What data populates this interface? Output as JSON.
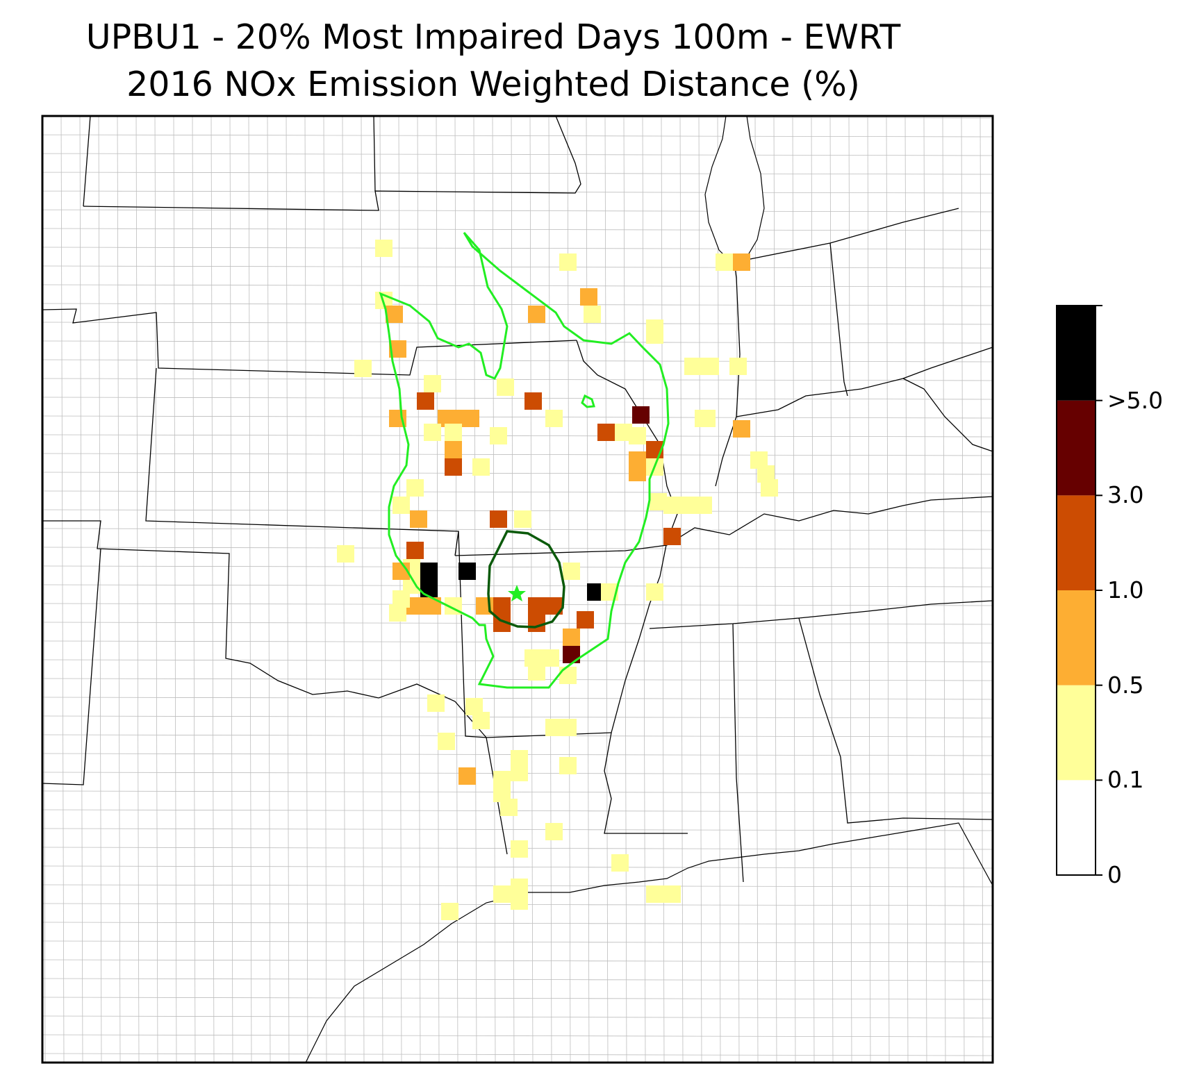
{
  "title": {
    "line1": "UPBU1 - 20% Most Impaired Days 100m - EWRT",
    "line2": "2016 NOx Emission Weighted Distance (%)"
  },
  "colorbar": {
    "labels": [
      "0",
      "0.1",
      "0.5",
      "1.0",
      "3.0",
      ">5.0"
    ],
    "bins": [
      {
        "min": 0,
        "max": 0.1,
        "color": "#ffffff"
      },
      {
        "min": 0.1,
        "max": 0.5,
        "color": "#ffff99"
      },
      {
        "min": 0.5,
        "max": 1.0,
        "color": "#fdae33"
      },
      {
        "min": 1.0,
        "max": 3.0,
        "color": "#cc4c02"
      },
      {
        "min": 3.0,
        "max": 5.0,
        "color": "#660000"
      },
      {
        "min": 5.0,
        "max": null,
        "color": "#000000"
      }
    ]
  },
  "overlays": {
    "outer_contour_color": "#22ee22",
    "inner_contour_color": "#0b5a0b",
    "site_marker_color": "#22ee22"
  }
}
